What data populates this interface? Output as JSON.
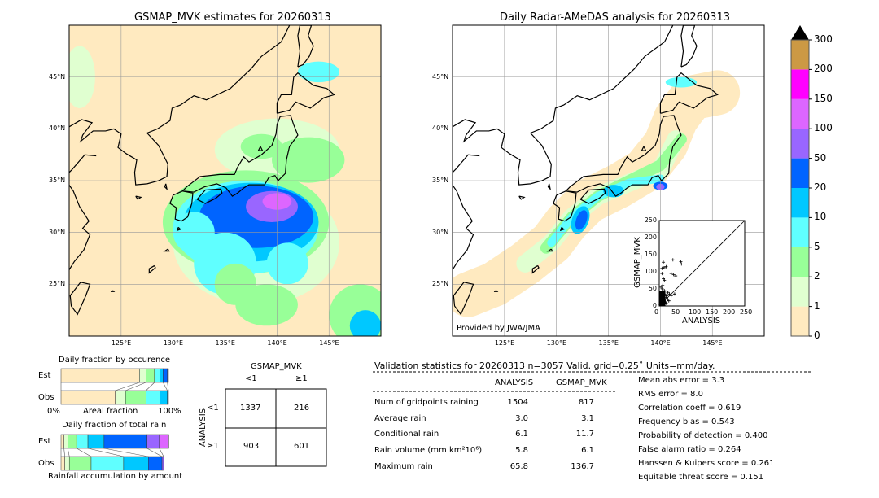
{
  "left_map": {
    "title": "GSMAP_MVK estimates for 20260313"
  },
  "right_map": {
    "title": "Daily Radar-AMeDAS analysis for 20260313",
    "credit": "Provided by JWA/JMA"
  },
  "lon_ticks": [
    "125°E",
    "130°E",
    "135°E",
    "140°E",
    "145°E"
  ],
  "lat_ticks": [
    "45°N",
    "40°N",
    "35°N",
    "30°N",
    "25°N"
  ],
  "colorbar": {
    "ticks": [
      "0",
      "1",
      "2",
      "5",
      "10",
      "20",
      "50",
      "100",
      "150",
      "200",
      "300"
    ],
    "colors": [
      "#ffeac0",
      "#e0ffd0",
      "#98ff98",
      "#60ffff",
      "#00c8ff",
      "#0064ff",
      "#9966ff",
      "#dd66ff",
      "#ff00ff",
      "#cc9944"
    ]
  },
  "occurrence": {
    "title": "Daily fraction by occurence",
    "est_label": "Est",
    "obs_label": "Obs",
    "x_left": "0%",
    "x_mid": "Areal fraction",
    "x_right": "100%",
    "est": [
      0.73,
      0.06,
      0.08,
      0.05,
      0.03,
      0.04,
      0.01
    ],
    "obs": [
      0.505,
      0.095,
      0.19,
      0.13,
      0.07,
      0.01
    ]
  },
  "total_rain": {
    "title": "Daily fraction of total rain",
    "est_label": "Est",
    "obs_label": "Obs",
    "xlabel": "Rainfall accumulation by amount",
    "est": [
      0.0275,
      0.035,
      0.083,
      0.105,
      0.15,
      0.4,
      0.115,
      0.0875
    ],
    "obs": [
      0.035,
      0.0425,
      0.2025,
      0.3025,
      0.23,
      0.1275,
      0.015
    ]
  },
  "contingency": {
    "col_title": "GSMAP_MVK",
    "row_title": "ANALYSIS",
    "lt1": "<1",
    "ge1": "≥1",
    "cells": [
      [
        "1337",
        "216"
      ],
      [
        "903",
        "601"
      ]
    ]
  },
  "stats": {
    "header": "Validation statistics for 20260313  n=3057 Valid. grid=0.25˚ Units=mm/day.",
    "col1": "ANALYSIS",
    "col2": "GSMAP_MVK",
    "rows": [
      {
        "label": "Num of gridpoints raining",
        "a": "1504",
        "g": "817"
      },
      {
        "label": "Average rain",
        "a": "3.0",
        "g": "3.1"
      },
      {
        "label": "Conditional rain",
        "a": "6.1",
        "g": "11.7"
      },
      {
        "label": "Rain volume (mm km²10⁶)",
        "a": "5.8",
        "g": "6.1"
      },
      {
        "label": "Maximum rain",
        "a": "65.8",
        "g": "136.7"
      }
    ],
    "scores": [
      "Mean abs error =    3.3",
      "RMS error =    8.0",
      "Correlation coeff =  0.619",
      "Frequency bias =  0.543",
      "Probability of detection =  0.400",
      "False alarm ratio =  0.264",
      "Hanssen & Kuipers score =  0.261",
      "Equitable threat score =  0.151"
    ]
  },
  "chart_data": {
    "type": "scatter",
    "xlabel": "ANALYSIS",
    "ylabel": "GSMAP_MVK",
    "xlim": [
      0,
      250
    ],
    "ylim": [
      0,
      250
    ],
    "ticks": [
      "0",
      "50",
      "100",
      "150",
      "200",
      "250"
    ],
    "points": [
      [
        12,
        128
      ],
      [
        40,
        135
      ],
      [
        63,
        130
      ],
      [
        65,
        123
      ],
      [
        8,
        110
      ],
      [
        14,
        112
      ],
      [
        20,
        115
      ],
      [
        35,
        95
      ],
      [
        42,
        92
      ],
      [
        48,
        88
      ],
      [
        8,
        95
      ],
      [
        12,
        80
      ],
      [
        15,
        75
      ],
      [
        10,
        60
      ],
      [
        5,
        55
      ],
      [
        25,
        40
      ],
      [
        30,
        35
      ],
      [
        45,
        35
      ],
      [
        35,
        30
      ],
      [
        20,
        25
      ],
      [
        15,
        45
      ],
      [
        5,
        40
      ],
      [
        10,
        30
      ],
      [
        3,
        20
      ],
      [
        8,
        15
      ],
      [
        18,
        12
      ],
      [
        25,
        20
      ],
      [
        2,
        5
      ],
      [
        6,
        8
      ],
      [
        12,
        5
      ],
      [
        20,
        8
      ],
      [
        4,
        30
      ],
      [
        9,
        50
      ],
      [
        16,
        35
      ],
      [
        28,
        15
      ],
      [
        14,
        22
      ],
      [
        7,
        25
      ],
      [
        11,
        40
      ],
      [
        22,
        30
      ]
    ]
  }
}
